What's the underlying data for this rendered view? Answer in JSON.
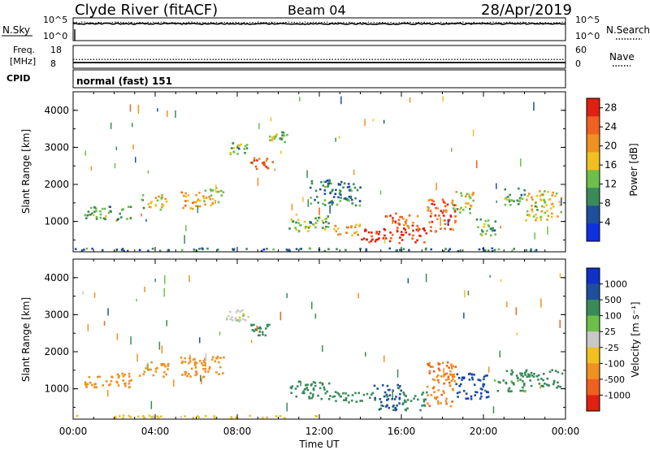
{
  "header": {
    "station": "Clyde River (fitACF)",
    "beam": "Beam 04",
    "date": "28/Apr/2019"
  },
  "strips": {
    "nsky_label": "N.Sky",
    "nsearch_label": "N.Search",
    "freq_label_1": "Freq.",
    "freq_label_2": "[MHz]",
    "nave_label": "Nave",
    "cpid_label": "CPID",
    "cpid_text": "normal (fast) 151",
    "noise_ticks": [
      "10^5",
      "10^0"
    ],
    "freq_ticks": [
      "18",
      "8"
    ],
    "nave_ticks": [
      "60",
      "0"
    ],
    "noise_range_exp": [
      0,
      5
    ],
    "freq_range_mhz": [
      8,
      18
    ],
    "nave_range": [
      0,
      60
    ],
    "noise_level_exp": 3.7,
    "freq_value_mhz": 10.5,
    "nave_value": 23
  },
  "colors": {
    "power": [
      "#1030e0",
      "#1f4f9c",
      "#3a8a5a",
      "#6cc04a",
      "#f0c020",
      "#f09020",
      "#f06020",
      "#e02010"
    ],
    "velocity": [
      "#1030c8",
      "#1f4f9c",
      "#3a8a5a",
      "#6cc04a",
      "#c8c8c8",
      "#f0c020",
      "#f09020",
      "#f06020",
      "#e02010"
    ]
  },
  "chart_data": [
    {
      "type": "heatmap",
      "panel": "power",
      "xlabel": "",
      "ylabel": "Slant Range [km]",
      "x_range_hours": [
        0,
        24
      ],
      "y_range_km": [
        180,
        4500
      ],
      "yticks": [
        "1000",
        "2000",
        "3000",
        "4000"
      ],
      "colorbar": {
        "label": "Power [dB]",
        "ticks": [
          "4",
          "8",
          "12",
          "16",
          "20",
          "24",
          "28"
        ],
        "range": [
          0,
          30
        ]
      },
      "regions": [
        {
          "t": [
            0.0,
            24.0
          ],
          "r": [
            180,
            260
          ],
          "level": 8
        },
        {
          "t": [
            0.5,
            2.8
          ],
          "r": [
            1000,
            1400
          ],
          "level": 12
        },
        {
          "t": [
            3.2,
            4.6
          ],
          "r": [
            1300,
            1700
          ],
          "level": 16
        },
        {
          "t": [
            5.2,
            6.2
          ],
          "r": [
            1300,
            1800
          ],
          "level": 20
        },
        {
          "t": [
            6.3,
            7.3
          ],
          "r": [
            1400,
            1900
          ],
          "level": 16
        },
        {
          "t": [
            7.5,
            8.5
          ],
          "r": [
            2800,
            3100
          ],
          "level": 12
        },
        {
          "t": [
            8.6,
            9.7
          ],
          "r": [
            2400,
            2750
          ],
          "level": 24
        },
        {
          "t": [
            9.5,
            10.4
          ],
          "r": [
            3100,
            3400
          ],
          "level": 12
        },
        {
          "t": [
            10.5,
            12.5
          ],
          "r": [
            700,
            1200
          ],
          "level": 12
        },
        {
          "t": [
            11.5,
            14.0
          ],
          "r": [
            1400,
            2100
          ],
          "level": 8
        },
        {
          "t": [
            12.6,
            14.0
          ],
          "r": [
            600,
            900
          ],
          "level": 20
        },
        {
          "t": [
            14.0,
            17.2
          ],
          "r": [
            400,
            800
          ],
          "level": 28
        },
        {
          "t": [
            15.2,
            16.8
          ],
          "r": [
            800,
            1200
          ],
          "level": 24
        },
        {
          "t": [
            17.2,
            18.6
          ],
          "r": [
            700,
            1600
          ],
          "level": 24
        },
        {
          "t": [
            18.4,
            19.5
          ],
          "r": [
            1200,
            1800
          ],
          "level": 16
        },
        {
          "t": [
            19.6,
            20.6
          ],
          "r": [
            600,
            1100
          ],
          "level": 12
        },
        {
          "t": [
            21.0,
            22.0
          ],
          "r": [
            1400,
            1900
          ],
          "level": 12
        },
        {
          "t": [
            22.0,
            23.8
          ],
          "r": [
            1000,
            1800
          ],
          "level": 16
        }
      ]
    },
    {
      "type": "heatmap",
      "panel": "velocity",
      "xlabel": "Time UT",
      "ylabel": "Slant Range [km]",
      "x_range_hours": [
        0,
        24
      ],
      "y_range_km": [
        180,
        4500
      ],
      "xticks": [
        "00:00",
        "04:00",
        "08:00",
        "12:00",
        "16:00",
        "20:00",
        "00:00"
      ],
      "yticks": [
        "1000",
        "2000",
        "3000",
        "4000"
      ],
      "colorbar": {
        "label": "Velocity [m s⁻¹]",
        "ticks": [
          "1000",
          "500",
          "100",
          "25",
          "-25",
          "-100",
          "-500",
          "-1000"
        ],
        "range": [
          -1000,
          1000
        ]
      },
      "regions": [
        {
          "t": [
            0.0,
            12.0
          ],
          "r": [
            180,
            260
          ],
          "level": -50
        },
        {
          "t": [
            0.5,
            2.8
          ],
          "r": [
            1000,
            1400
          ],
          "level": -200
        },
        {
          "t": [
            3.2,
            4.6
          ],
          "r": [
            1300,
            1700
          ],
          "level": -300
        },
        {
          "t": [
            5.2,
            7.3
          ],
          "r": [
            1300,
            1900
          ],
          "level": -300
        },
        {
          "t": [
            7.5,
            8.5
          ],
          "r": [
            2800,
            3100
          ],
          "level": 0
        },
        {
          "t": [
            8.6,
            9.7
          ],
          "r": [
            2400,
            2750
          ],
          "level": 150
        },
        {
          "t": [
            10.5,
            12.5
          ],
          "r": [
            700,
            1200
          ],
          "level": 200
        },
        {
          "t": [
            12.6,
            14.5
          ],
          "r": [
            600,
            900
          ],
          "level": 250
        },
        {
          "t": [
            14.5,
            16.0
          ],
          "r": [
            400,
            1100
          ],
          "level": 700
        },
        {
          "t": [
            16.0,
            17.2
          ],
          "r": [
            400,
            900
          ],
          "level": 200
        },
        {
          "t": [
            17.2,
            18.6
          ],
          "r": [
            500,
            1700
          ],
          "level": -500
        },
        {
          "t": [
            18.6,
            20.2
          ],
          "r": [
            700,
            1400
          ],
          "level": 800
        },
        {
          "t": [
            20.5,
            22.0
          ],
          "r": [
            900,
            1500
          ],
          "level": 150
        },
        {
          "t": [
            22.0,
            23.8
          ],
          "r": [
            1000,
            1500
          ],
          "level": 200
        }
      ]
    }
  ]
}
